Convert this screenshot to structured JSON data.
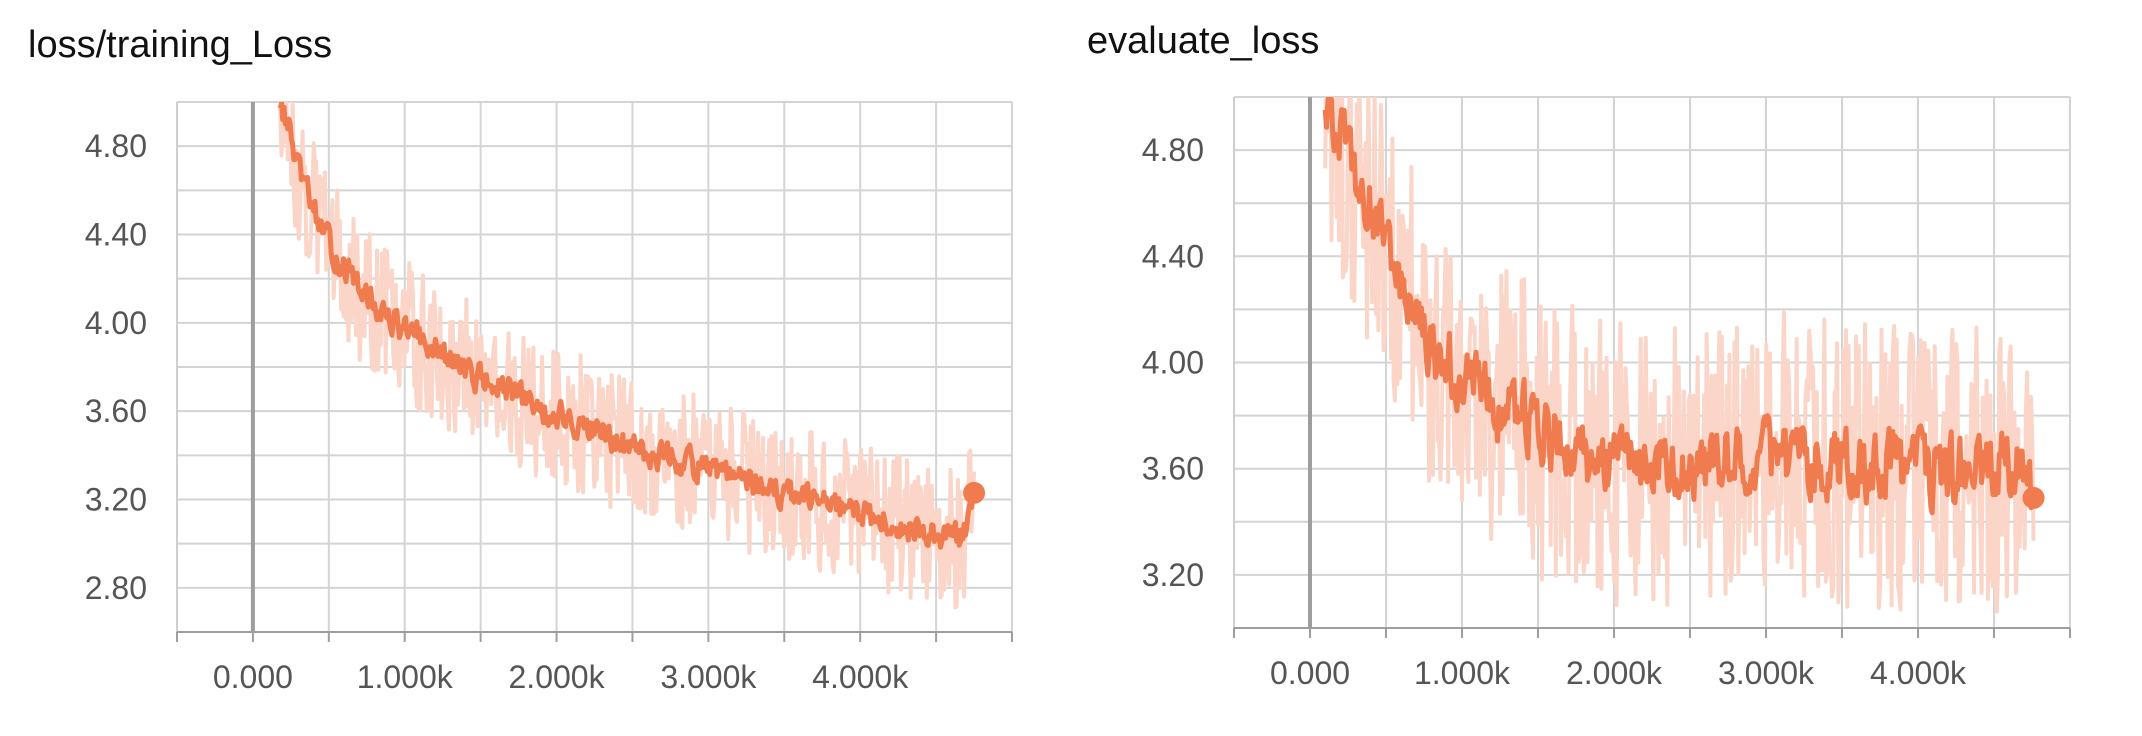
{
  "chart_data": [
    {
      "type": "line",
      "title": "loss/training_Loss",
      "xlabel": "",
      "ylabel": "",
      "xlim": [
        -500,
        5000
      ],
      "ylim": [
        2.6,
        5.0
      ],
      "xticks": [
        0,
        1000,
        2000,
        3000,
        4000
      ],
      "xtick_labels": [
        "0.000",
        "1.000k",
        "2.000k",
        "3.000k",
        "4.000k"
      ],
      "yticks": [
        2.8,
        3.2,
        3.6,
        4.0,
        4.4,
        4.8
      ],
      "ytick_labels": [
        "2.80",
        "3.20",
        "3.60",
        "4.00",
        "4.40",
        "4.80"
      ],
      "grid": true,
      "colors": {
        "line": "#f07b4f",
        "raw": "#fbd6c8",
        "zero_line": "#9e9e9e",
        "grid": "#d4d4d4"
      },
      "x": [
        180,
        250,
        300,
        400,
        500,
        600,
        700,
        800,
        900,
        1000,
        1100,
        1200,
        1300,
        1400,
        1500,
        1600,
        1700,
        1800,
        1900,
        2000,
        2100,
        2200,
        2300,
        2400,
        2500,
        2600,
        2700,
        2800,
        2900,
        3000,
        3100,
        3200,
        3300,
        3400,
        3500,
        3600,
        3700,
        3800,
        3900,
        4000,
        4100,
        4200,
        4300,
        4400,
        4500,
        4600,
        4700,
        4750
      ],
      "smoothed": [
        5.0,
        4.85,
        4.68,
        4.52,
        4.35,
        4.25,
        4.15,
        4.08,
        4.02,
        3.97,
        3.92,
        3.87,
        3.83,
        3.79,
        3.75,
        3.71,
        3.68,
        3.64,
        3.61,
        3.58,
        3.55,
        3.52,
        3.5,
        3.47,
        3.44,
        3.42,
        3.4,
        3.38,
        3.36,
        3.33,
        3.31,
        3.29,
        3.27,
        3.25,
        3.23,
        3.21,
        3.19,
        3.17,
        3.15,
        3.13,
        3.11,
        3.09,
        3.08,
        3.06,
        3.04,
        3.02,
        3.05,
        3.23
      ]
    },
    {
      "type": "line",
      "title": "evaluate_loss",
      "xlabel": "",
      "ylabel": "",
      "xlim": [
        -500,
        5000
      ],
      "ylim": [
        3.0,
        5.0
      ],
      "xticks": [
        0,
        1000,
        2000,
        3000,
        4000
      ],
      "xtick_labels": [
        "0.000",
        "1.000k",
        "2.000k",
        "3.000k",
        "4.000k"
      ],
      "yticks": [
        3.2,
        3.6,
        4.0,
        4.4,
        4.8
      ],
      "ytick_labels": [
        "3.20",
        "3.60",
        "4.00",
        "4.40",
        "4.80"
      ],
      "grid": true,
      "colors": {
        "line": "#f07b4f",
        "raw": "#fbd6c8",
        "zero_line": "#9e9e9e",
        "grid": "#d4d4d4"
      },
      "x": [
        100,
        200,
        300,
        400,
        500,
        600,
        700,
        800,
        900,
        1000,
        1100,
        1200,
        1300,
        1400,
        1500,
        1600,
        1700,
        1800,
        1900,
        2000,
        2100,
        2200,
        2300,
        2400,
        2500,
        2600,
        2700,
        2800,
        2900,
        3000,
        3100,
        3200,
        3300,
        3400,
        3500,
        3600,
        3700,
        3800,
        3900,
        4000,
        4100,
        4200,
        4300,
        4400,
        4500,
        4600,
        4700,
        4760
      ],
      "smoothed": [
        5.0,
        4.85,
        4.72,
        4.58,
        4.42,
        4.3,
        4.18,
        4.08,
        4.0,
        3.94,
        3.9,
        3.86,
        3.82,
        3.78,
        3.74,
        3.71,
        3.68,
        3.66,
        3.64,
        3.63,
        3.62,
        3.62,
        3.61,
        3.62,
        3.62,
        3.63,
        3.63,
        3.64,
        3.64,
        3.65,
        3.64,
        3.63,
        3.63,
        3.62,
        3.62,
        3.61,
        3.61,
        3.6,
        3.6,
        3.6,
        3.59,
        3.59,
        3.59,
        3.59,
        3.6,
        3.61,
        3.56,
        3.49
      ]
    }
  ]
}
